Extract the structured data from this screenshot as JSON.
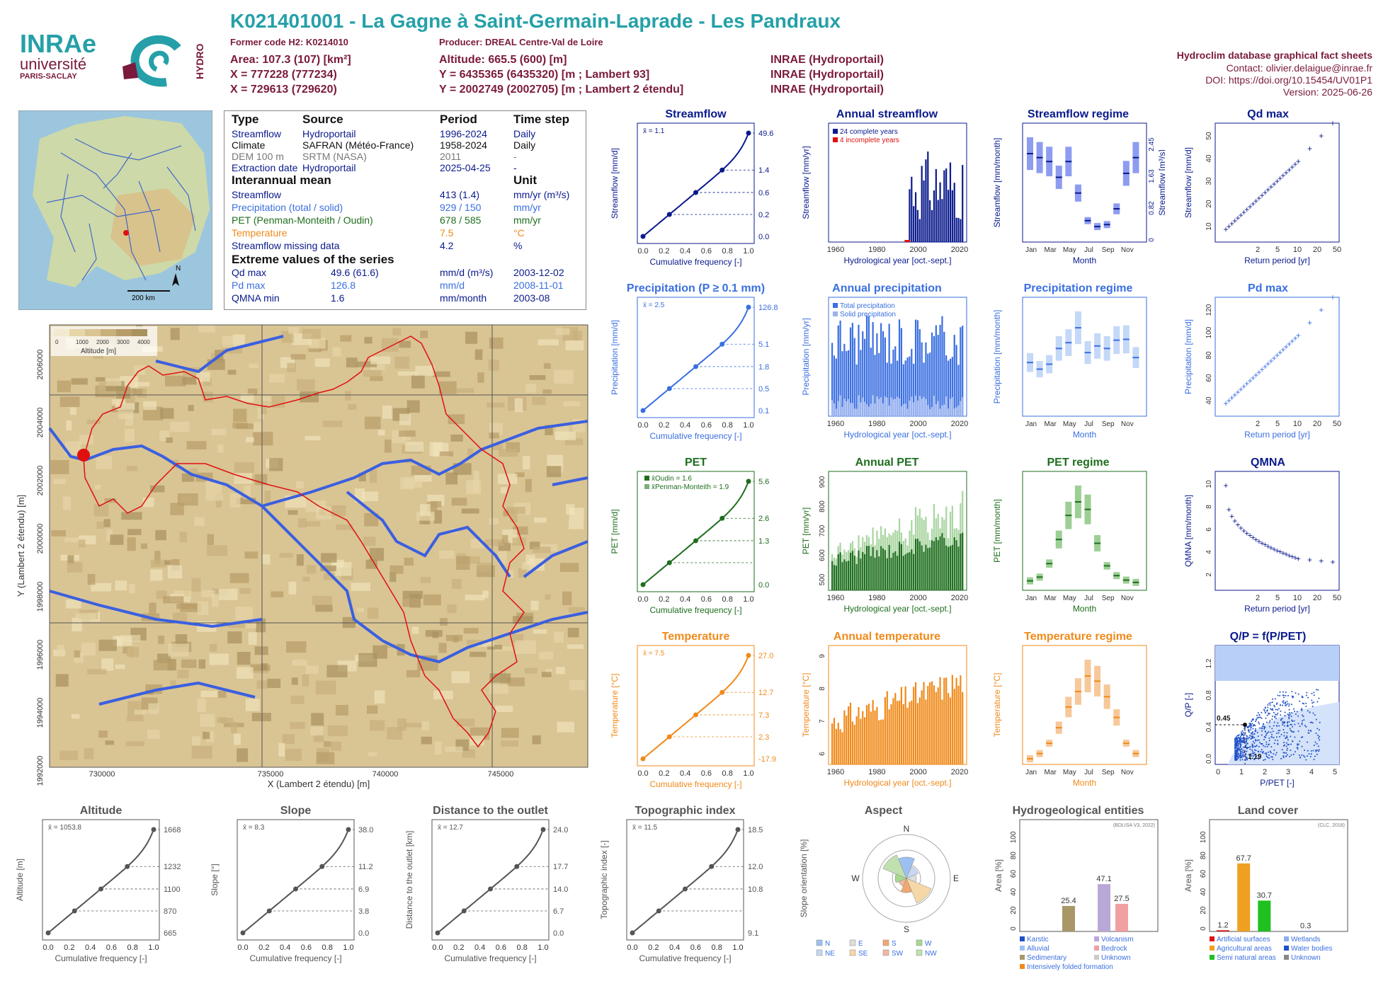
{
  "header": {
    "title": "K021401001 - La Gagne à Saint-Germain-Laprade - Les Pandraux",
    "former_code": "Former code H2: K0214010",
    "producer": "Producer: DREAL Centre-Val de Loire",
    "area": "Area: 107.3 (107) [km²]",
    "altitude": "Altitude: 665.5 (600) [m]",
    "x93": "X = 777228 (777234)",
    "y93": "Y = 6435365 (6435320) [m ; Lambert 93]",
    "x2e": "X = 729613 (729620)",
    "y2e": "Y = 2002749 (2002705) [m ; Lambert 2 étendu]",
    "src1": "INRAE (Hydroportail)",
    "src2": "INRAE (Hydroportail)",
    "src3": "INRAE (Hydroportail)",
    "sheet": "Hydroclim database graphical fact sheets",
    "contact": "Contact: olivier.delaigue@inrae.fr",
    "doi": "DOI: https://doi.org/10.15454/UV01P1",
    "version": "Version: 2025-06-26",
    "logo_inrae": "INRAe",
    "logo_univ": "université",
    "logo_paris": "PARIS-SACLAY",
    "logo_hydro": "HYDRO"
  },
  "colors": {
    "flow": "#0a1a8c",
    "precip": "#3a6fe0",
    "pet": "#1e6e1e",
    "temp": "#f08a1a",
    "gray": "#555555",
    "teal": "#25a0a8"
  },
  "table": {
    "h_type": "Type",
    "h_source": "Source",
    "h_period": "Period",
    "h_step": "Time step",
    "rows": [
      {
        "t": "Streamflow",
        "s": "Hydroportail",
        "p": "1996-2024",
        "d": "Daily",
        "c": "#0a1a8c"
      },
      {
        "t": "Climate",
        "s": "SAFRAN (Météo-France)",
        "p": "1958-2024",
        "d": "Daily",
        "c": "#111111"
      },
      {
        "t": "DEM 100 m",
        "s": "SRTM (NASA)",
        "p": "2011",
        "d": "-",
        "c": "#777777"
      },
      {
        "t": "Extraction date",
        "s": "Hydroportail",
        "p": "2025-04-25",
        "d": "-",
        "c": "#0a1a8c"
      }
    ],
    "h_inter": "Interannual mean",
    "h_unit": "Unit",
    "inter": [
      {
        "t": "Streamflow",
        "v": "413 (1.4)",
        "u": "mm/yr (m³/s)",
        "c": "#0a1a8c"
      },
      {
        "t": "Precipitation (total / solid)",
        "v": "929 / 150",
        "u": "mm/yr",
        "c": "#3a6fe0"
      },
      {
        "t": "PET (Penman-Monteith / Oudin)",
        "v": "678 / 585",
        "u": "mm/yr",
        "c": "#1e6e1e"
      },
      {
        "t": "Temperature",
        "v": "7.5",
        "u": "°C",
        "c": "#f08a1a"
      },
      {
        "t": "Streamflow missing data",
        "v": "4.2",
        "u": "%",
        "c": "#0a1a8c"
      }
    ],
    "h_extreme": "Extreme values of the series",
    "extreme": [
      {
        "t": "Qd max",
        "v": "49.6 (61.6)",
        "u": "mm/d (m³/s)",
        "d": "2003-12-02",
        "c": "#0a1a8c"
      },
      {
        "t": "Pd max",
        "v": "126.8",
        "u": "mm/d",
        "d": "2008-11-01",
        "c": "#3a6fe0"
      },
      {
        "t": "QMNA min",
        "v": "1.6",
        "u": "mm/month",
        "d": "2003-08",
        "c": "#0a1a8c"
      }
    ]
  },
  "minimap": {
    "north": "N",
    "scale": "200 km"
  },
  "map": {
    "xticks": [
      "730000",
      "735000",
      "740000",
      "745000"
    ],
    "yticks": [
      "2006000",
      "2004000",
      "2002000",
      "2000000",
      "1998000",
      "1996000",
      "1994000",
      "1992000"
    ],
    "xlabel": "X (Lambert 2 étendu) [m]",
    "ylabel": "Y (Lambert 2 étendu) [m]",
    "legend_ticks": [
      "0",
      "1000",
      "2000",
      "3000",
      "4000"
    ],
    "legend_title": "Altitude [m]"
  },
  "chart_data": [
    {
      "id": "streamflow",
      "type": "line",
      "title": "Streamflow",
      "xlabel": "Cumulative frequency [-]",
      "ylabel": "Streamflow [mm/d]",
      "mean": "x̄ = 1.1",
      "right_ticks": [
        "49.6",
        "1.4",
        "0.6",
        "0.2",
        "0.0"
      ],
      "x": [
        0,
        0.25,
        0.5,
        0.75,
        1
      ],
      "y": [
        0,
        0.2,
        0.6,
        1.4,
        49.6
      ]
    },
    {
      "id": "annual_streamflow",
      "type": "bar",
      "title": "Annual streamflow",
      "xlabel": "Hydrological year [oct.-sept.]",
      "ylabel": "Streamflow [mm/yr]",
      "legend": [
        "24 complete years",
        "4 incomplete years"
      ],
      "xticks": [
        "1960",
        "1980",
        "2000",
        "2020"
      ]
    },
    {
      "id": "streamflow_regime",
      "type": "bar",
      "title": "Streamflow regime",
      "xlabel": "Month",
      "ylabel": "Streamflow [mm/month]",
      "ylabel2": "Streamflow [m³/s]",
      "right_ticks": [
        "2.45",
        "1.63",
        "0.82",
        "0"
      ],
      "months": [
        "Jan",
        "Mar",
        "May",
        "Jul",
        "Sep",
        "Nov"
      ],
      "values": [
        42,
        40,
        38,
        30,
        38,
        22,
        8,
        5,
        6,
        14,
        32,
        40
      ]
    },
    {
      "id": "qd_max",
      "type": "scatter",
      "title": "Qd max",
      "xlabel": "Return period [yr]",
      "ylabel": "Streamflow [mm/d]",
      "xticks": [
        "2",
        "5",
        "10",
        "20",
        "50"
      ],
      "yticks": [
        "10",
        "20",
        "30",
        "40",
        "50"
      ]
    },
    {
      "id": "precipitation",
      "type": "line",
      "title": "Precipitation (P ≥ 0.1 mm)",
      "xlabel": "Cumulative frequency [-]",
      "ylabel": "Precipitation [mm/d]",
      "mean": "x̄ = 2.5",
      "right_ticks": [
        "126.8",
        "5.1",
        "1.8",
        "0.5",
        "0.1"
      ],
      "x": [
        0,
        0.25,
        0.5,
        0.75,
        1
      ],
      "y": [
        0.1,
        0.5,
        1.8,
        5.1,
        126.8
      ]
    },
    {
      "id": "annual_precipitation",
      "type": "bar",
      "title": "Annual precipitation",
      "xlabel": "Hydrological year [oct.-sept.]",
      "ylabel": "Precipitation [mm/yr]",
      "legend": [
        "Total precipitation",
        "Solid precipitation"
      ],
      "xticks": [
        "1960",
        "1980",
        "2000",
        "2020"
      ]
    },
    {
      "id": "precip_regime",
      "type": "bar",
      "title": "Precipitation regime",
      "xlabel": "Month",
      "ylabel": "Precipitation [mm/month]",
      "months": [
        "Jan",
        "Mar",
        "May",
        "Jul",
        "Sep",
        "Nov"
      ],
      "values": [
        58,
        50,
        56,
        75,
        82,
        100,
        70,
        78,
        75,
        85,
        86,
        64
      ]
    },
    {
      "id": "pd_max",
      "type": "scatter",
      "title": "Pd max",
      "xlabel": "Return period [yr]",
      "ylabel": "Precipitation [mm/d]",
      "xticks": [
        "2",
        "5",
        "10",
        "20",
        "50"
      ],
      "yticks": [
        "40",
        "60",
        "80",
        "100",
        "120"
      ]
    },
    {
      "id": "pet",
      "type": "line",
      "title": "PET",
      "xlabel": "Cumulative frequency [-]",
      "ylabel": "PET [mm/d]",
      "legend": [
        "x̄Oudin = 1.6",
        "x̄Penman-Monteith = 1.9"
      ],
      "right_ticks": [
        "5.6",
        "2.6",
        "1.3",
        "0.0"
      ],
      "x": [
        0,
        0.25,
        0.5,
        0.75,
        1
      ],
      "y": [
        0,
        0.4,
        1.3,
        2.6,
        5.6
      ]
    },
    {
      "id": "annual_pet",
      "type": "bar",
      "title": "Annual PET",
      "xlabel": "Hydrological year [oct.-sept.]",
      "ylabel": "PET [mm/yr]",
      "xticks": [
        "1960",
        "1980",
        "2000",
        "2020"
      ],
      "yticks": [
        "500",
        "600",
        "700",
        "800",
        "900"
      ]
    },
    {
      "id": "pet_regime",
      "type": "bar",
      "title": "PET regime",
      "xlabel": "Month",
      "ylabel": "PET [mm/month]",
      "months": [
        "Jan",
        "Mar",
        "May",
        "Jul",
        "Sep",
        "Nov"
      ],
      "values": [
        5,
        10,
        28,
        60,
        92,
        110,
        100,
        55,
        25,
        12,
        6,
        3
      ]
    },
    {
      "id": "qmna",
      "type": "scatter",
      "title": "QMNA",
      "xlabel": "Return period [yr]",
      "ylabel": "QMNA [mm/month]",
      "xticks": [
        "2",
        "5",
        "10",
        "20",
        "50"
      ],
      "yticks": [
        "2",
        "4",
        "6",
        "8",
        "10"
      ]
    },
    {
      "id": "temperature",
      "type": "line",
      "title": "Temperature",
      "xlabel": "Cumulative frequency [-]",
      "ylabel": "Temperature [°C]",
      "mean": "x̄ = 7.5",
      "right_ticks": [
        "27.0",
        "12.7",
        "7.3",
        "2.3",
        "-17.9"
      ],
      "x": [
        0,
        0.25,
        0.5,
        0.75,
        1
      ],
      "y": [
        -17.9,
        2.3,
        7.3,
        12.7,
        27.0
      ]
    },
    {
      "id": "annual_temperature",
      "type": "bar",
      "title": "Annual temperature",
      "xlabel": "Hydrological year [oct.-sept.]",
      "ylabel": "Temperature [°C]",
      "xticks": [
        "1960",
        "1980",
        "2000",
        "2020"
      ],
      "yticks": [
        "6",
        "7",
        "8",
        "9"
      ]
    },
    {
      "id": "temp_regime",
      "type": "bar",
      "title": "Temperature regime",
      "xlabel": "Month",
      "ylabel": "Temperature [°C]",
      "months": [
        "Jan",
        "Mar",
        "May",
        "Jul",
        "Sep",
        "Nov"
      ],
      "values": [
        0,
        1,
        3,
        6,
        10,
        13,
        16,
        15,
        12,
        8,
        3,
        1
      ]
    },
    {
      "id": "qp_ppet",
      "type": "scatter",
      "title": "Q/P = f(P/PET)",
      "xlabel": "P/PET [-]",
      "ylabel": "Q/P [-]",
      "labels": [
        "0.45",
        "1.19"
      ],
      "xticks": [
        "0",
        "1",
        "2",
        "3",
        "4",
        "5"
      ],
      "yticks": [
        "0.0",
        "0.4",
        "0.8",
        "1.2"
      ]
    },
    {
      "id": "altitude",
      "type": "line",
      "title": "Altitude",
      "xlabel": "Cumulative frequency [-]",
      "ylabel": "Altitude [m]",
      "mean": "x̄ = 1053.8",
      "right_ticks": [
        "1668",
        "1232",
        "1100",
        "870",
        "665"
      ],
      "x": [
        0,
        0.25,
        0.5,
        0.75,
        1
      ],
      "y": [
        665,
        870,
        1100,
        1232,
        1668
      ]
    },
    {
      "id": "slope",
      "type": "line",
      "title": "Slope",
      "xlabel": "Cumulative frequency [-]",
      "ylabel": "Slope [°]",
      "mean": "x̄ = 8.3",
      "right_ticks": [
        "38.0",
        "11.2",
        "6.9",
        "3.8",
        "0.0"
      ],
      "x": [
        0,
        0.25,
        0.5,
        0.75,
        1
      ],
      "y": [
        0,
        3.8,
        6.9,
        11.2,
        38.0
      ]
    },
    {
      "id": "distance",
      "type": "line",
      "title": "Distance to the outlet",
      "xlabel": "Cumulative frequency [-]",
      "ylabel": "Distance to the outlet [km]",
      "mean": "x̄ = 12.7",
      "right_ticks": [
        "24.0",
        "17.7",
        "14.0",
        "6.7",
        "0.0"
      ],
      "x": [
        0,
        0.25,
        0.5,
        0.75,
        1
      ],
      "y": [
        0,
        6.7,
        14.0,
        17.7,
        24.0
      ]
    },
    {
      "id": "topo_index",
      "type": "line",
      "title": "Topographic index",
      "xlabel": "Cumulative frequency [-]",
      "ylabel": "Topographic index [-]",
      "mean": "x̄ = 11.5",
      "right_ticks": [
        "18.5",
        "12.0",
        "10.8",
        "9.1"
      ],
      "x": [
        0,
        0.25,
        0.5,
        0.75,
        1
      ],
      "y": [
        9.1,
        10.8,
        11.3,
        12.0,
        18.5
      ]
    },
    {
      "id": "aspect",
      "type": "pie",
      "title": "Aspect",
      "ylabel": "Slope orientation [%]",
      "dirs": [
        "N",
        "E",
        "S",
        "W"
      ],
      "legend": [
        "N",
        "E",
        "S",
        "W",
        "NE",
        "SE",
        "SW",
        "NW"
      ]
    },
    {
      "id": "hydrogeo",
      "type": "bar",
      "title": "Hydrogeological entities",
      "ylabel": "Area [%]",
      "source": "(BDLISA V3, 2022)",
      "categories": [
        "Karstic",
        "Alluvial",
        "Sedimentary",
        "Intensively folded formation",
        "Volcanism",
        "Bedrock",
        "Unknown"
      ],
      "values": [
        0,
        0,
        25.4,
        0,
        47.1,
        27.5,
        0
      ],
      "labels": [
        "25.4",
        "47.1",
        "27.5"
      ]
    },
    {
      "id": "landcover",
      "type": "bar",
      "title": "Land cover",
      "ylabel": "Area [%]",
      "source": "(CLC, 2018)",
      "categories": [
        "Artificial surfaces",
        "Agricultural areas",
        "Semi natural areas",
        "Wetlands",
        "Water bodies",
        "Unknown"
      ],
      "values": [
        1.2,
        67.7,
        30.7,
        0,
        0.3,
        0
      ],
      "labels": [
        "1.2",
        "67.7",
        "30.7",
        "0.3"
      ]
    }
  ]
}
